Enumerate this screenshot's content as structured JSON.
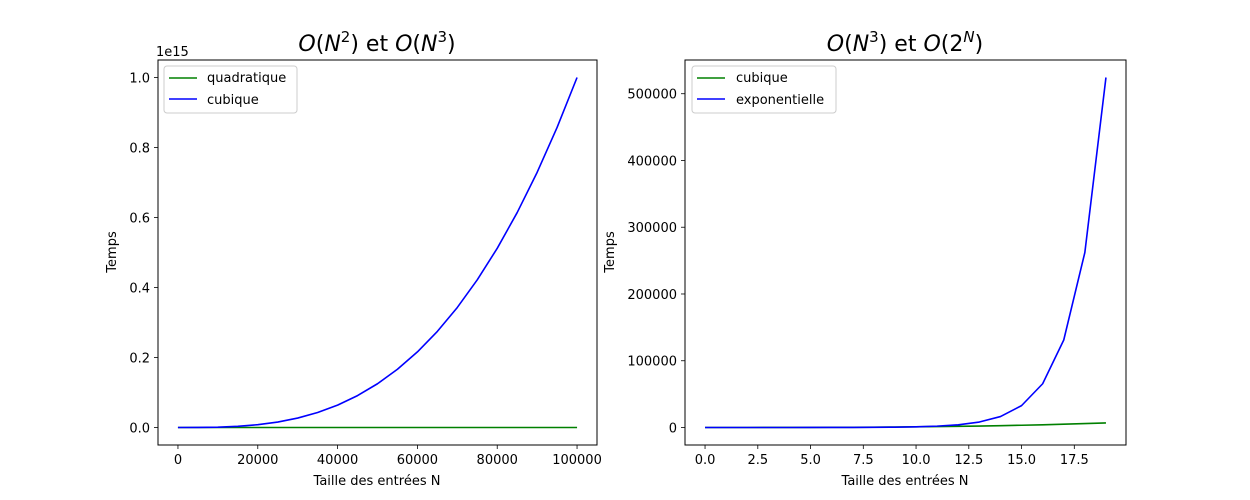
{
  "chart_data": [
    {
      "type": "line",
      "title": {
        "l1": "O",
        "l2": "(",
        "l3": "N",
        "sup1": "2",
        "l4": ") et ",
        "l5": "O",
        "l6": "(",
        "l7": "N",
        "sup2": "3",
        "l8": ")"
      },
      "xlabel": "Taille des entrées N",
      "ylabel": "Temps",
      "xlim": [
        -5000,
        105000
      ],
      "ylim": [
        -50000000000000.0,
        1050000000000000.0
      ],
      "x_ticks": [
        0,
        20000,
        40000,
        60000,
        80000,
        100000
      ],
      "x_tick_labels": [
        "0",
        "20000",
        "40000",
        "60000",
        "80000",
        "100000"
      ],
      "y_ticks": [
        0,
        200000000000000.0,
        400000000000000.0,
        600000000000000.0,
        800000000000000.0,
        1000000000000000.0
      ],
      "y_tick_labels": [
        "0.0",
        "0.2",
        "0.4",
        "0.6",
        "0.8",
        "1.0"
      ],
      "y_offset_label": "1e15",
      "legend_position": "top-left",
      "grid": false,
      "series": [
        {
          "name": "quadratique",
          "color": "#008000",
          "x": [
            0,
            5000,
            10000,
            15000,
            20000,
            25000,
            30000,
            35000,
            40000,
            45000,
            50000,
            55000,
            60000,
            65000,
            70000,
            75000,
            80000,
            85000,
            90000,
            95000,
            100000
          ],
          "y": [
            0,
            25000000.0,
            100000000.0,
            225000000.0,
            400000000.0,
            625000000.0,
            900000000.0,
            1225000000.0,
            1600000000.0,
            2025000000.0,
            2500000000.0,
            3025000000.0,
            3600000000.0,
            4225000000.0,
            4900000000.0,
            5625000000.0,
            6400000000.0,
            7225000000.0,
            8100000000.0,
            9025000000.0,
            10000000000.0
          ]
        },
        {
          "name": "cubique",
          "color": "#0000ff",
          "x": [
            0,
            5000,
            10000,
            15000,
            20000,
            25000,
            30000,
            35000,
            40000,
            45000,
            50000,
            55000,
            60000,
            65000,
            70000,
            75000,
            80000,
            85000,
            90000,
            95000,
            100000
          ],
          "y": [
            0,
            125000000000.0,
            1000000000000.0,
            3375000000000.0,
            8000000000000.0,
            15625000000000.0,
            27000000000000.0,
            42875000000000.0,
            64000000000000.0,
            91125000000000.0,
            125000000000000.0,
            166375000000000.0,
            216000000000000.0,
            274625000000000.0,
            343000000000000.0,
            421875000000000.0,
            512000000000000.0,
            614125000000000.0,
            729000000000000.0,
            857375000000000.0,
            1000000000000000.0
          ]
        }
      ]
    },
    {
      "type": "line",
      "title": {
        "l1": "O",
        "l2": "(",
        "l3": "N",
        "sup1": "3",
        "l4": ") et ",
        "l5": "O",
        "l6": "(2",
        "l7": "",
        "sup2": "N",
        "l8": ")"
      },
      "xlabel": "Taille des entrées N",
      "ylabel": "Temps",
      "xlim": [
        -0.95,
        19.95
      ],
      "ylim": [
        -26214,
        550502
      ],
      "x_ticks": [
        0,
        2.5,
        5,
        7.5,
        10,
        12.5,
        15,
        17.5
      ],
      "x_tick_labels": [
        "0.0",
        "2.5",
        "5.0",
        "7.5",
        "10.0",
        "12.5",
        "15.0",
        "17.5"
      ],
      "y_ticks": [
        0,
        100000,
        200000,
        300000,
        400000,
        500000
      ],
      "y_tick_labels": [
        "0",
        "100000",
        "200000",
        "300000",
        "400000",
        "500000"
      ],
      "legend_position": "top-left",
      "grid": false,
      "series": [
        {
          "name": "cubique",
          "color": "#008000",
          "x": [
            0,
            1,
            2,
            3,
            4,
            5,
            6,
            7,
            8,
            9,
            10,
            11,
            12,
            13,
            14,
            15,
            16,
            17,
            18,
            19
          ],
          "y": [
            0,
            1,
            8,
            27,
            64,
            125,
            216,
            343,
            512,
            729,
            1000,
            1331,
            1728,
            2197,
            2744,
            3375,
            4096,
            4913,
            5832,
            6859
          ]
        },
        {
          "name": "exponentielle",
          "color": "#0000ff",
          "x": [
            0,
            1,
            2,
            3,
            4,
            5,
            6,
            7,
            8,
            9,
            10,
            11,
            12,
            13,
            14,
            15,
            16,
            17,
            18,
            19
          ],
          "y": [
            1,
            2,
            4,
            8,
            16,
            32,
            64,
            128,
            256,
            512,
            1024,
            2048,
            4096,
            8192,
            16384,
            32768,
            65536,
            131072,
            262144,
            524288
          ]
        }
      ]
    }
  ]
}
